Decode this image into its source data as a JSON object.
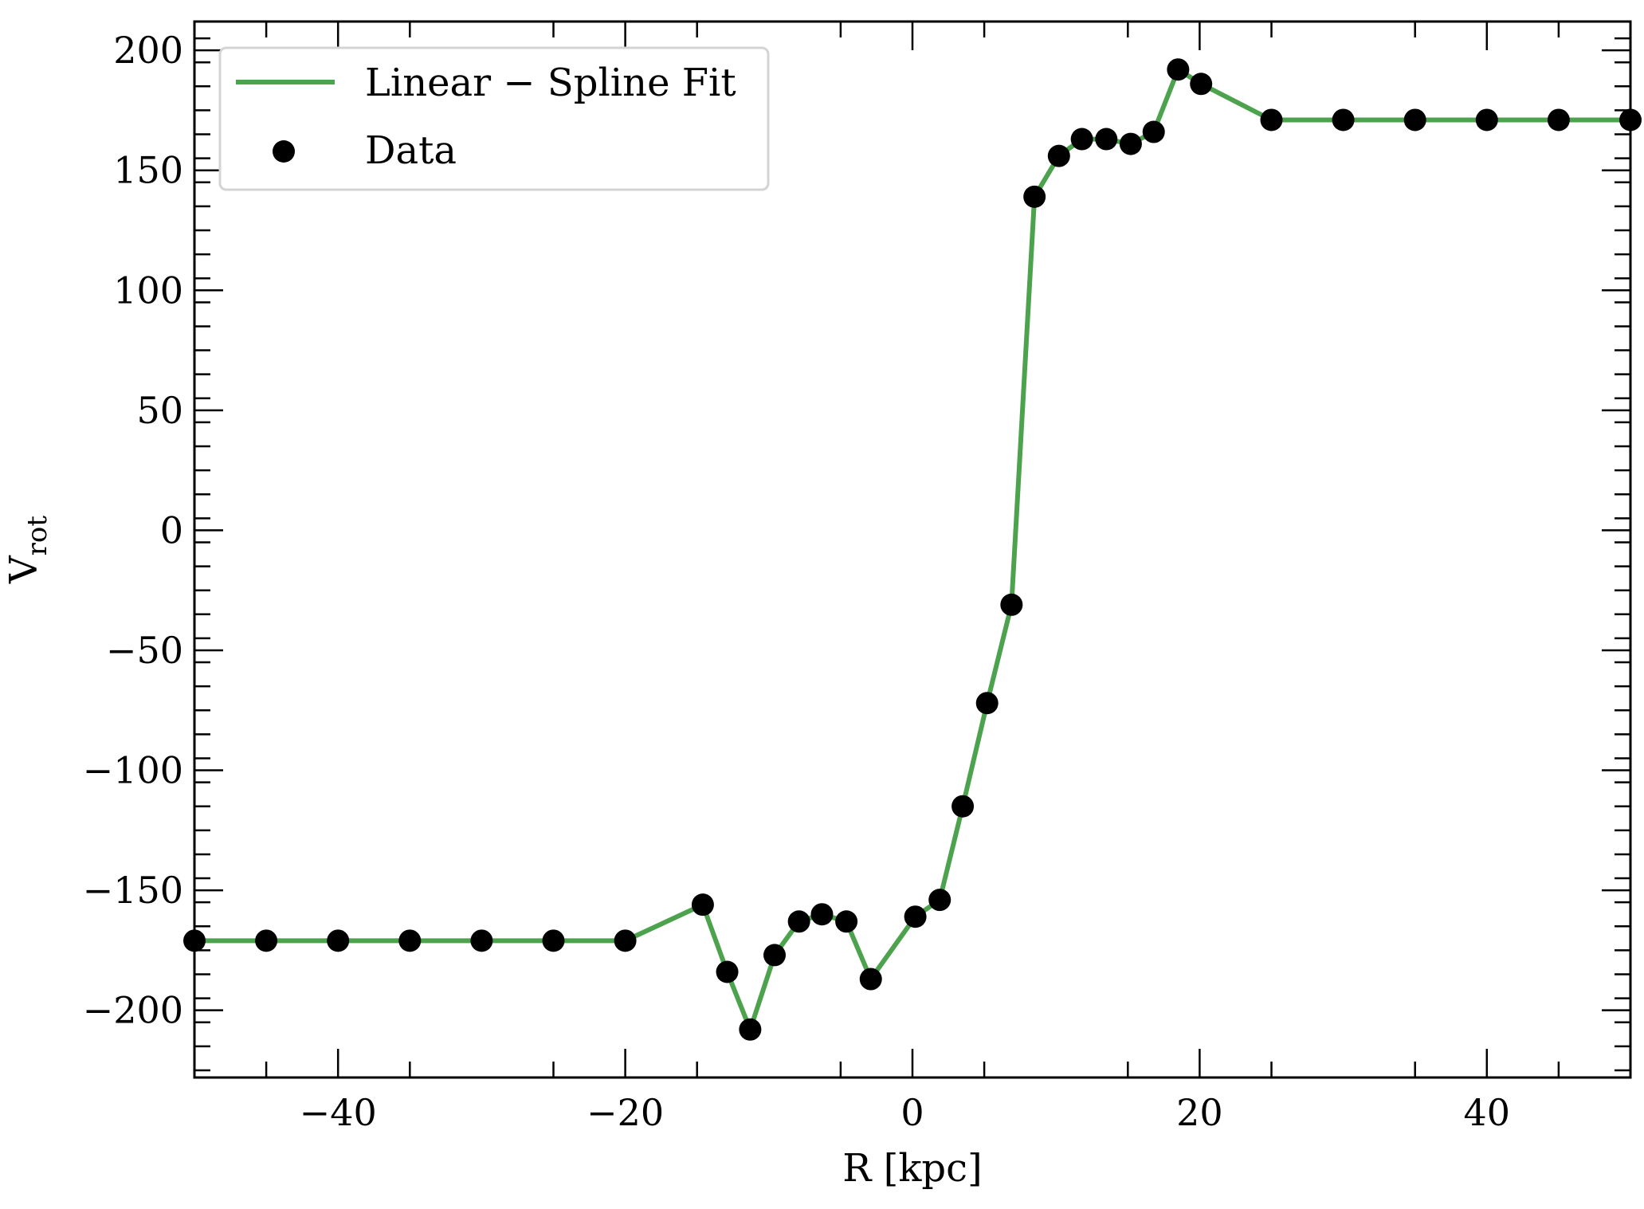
{
  "chart_data": {
    "type": "line",
    "title": "",
    "xlabel": "R [kpc]",
    "ylabel": "V",
    "ylabel_sub": "rot",
    "xlim": [
      -50,
      50
    ],
    "ylim": [
      -228,
      212
    ],
    "xticks": [
      -40,
      -20,
      0,
      20,
      40
    ],
    "xtick_labels": [
      "−40",
      "−20",
      "0",
      "20",
      "40"
    ],
    "yticks": [
      200,
      150,
      100,
      50,
      0,
      -50,
      -100,
      -150,
      -200
    ],
    "ytick_labels": [
      "200",
      "150",
      "100",
      "50",
      "0",
      "−50",
      "−100",
      "−150",
      "−200"
    ],
    "grid": false,
    "legend_position": "top-left",
    "series": [
      {
        "name": "Linear − Spline Fit",
        "kind": "line",
        "color": "#4da34d",
        "x": [
          -50,
          -45,
          -40,
          -35,
          -30,
          -25,
          -20,
          -14.6,
          -12.9,
          -11.3,
          -9.6,
          -7.9,
          -6.3,
          -4.6,
          -2.9,
          0.2,
          1.9,
          3.5,
          5.2,
          6.9,
          8.5,
          10.2,
          11.8,
          13.5,
          15.2,
          16.8,
          18.5,
          20.1,
          25,
          30,
          35,
          40,
          45,
          50
        ],
        "y": [
          -171,
          -171,
          -171,
          -171,
          -171,
          -171,
          -171,
          -156,
          -184,
          -208,
          -177,
          -163,
          -160,
          -163,
          -187,
          -161,
          -154,
          -115,
          -72,
          -31,
          139,
          156,
          163,
          163,
          161,
          166,
          192,
          186,
          171,
          171,
          171,
          171,
          171,
          171
        ]
      },
      {
        "name": "Data",
        "kind": "scatter",
        "color": "#000000",
        "x": [
          -50,
          -45,
          -40,
          -35,
          -30,
          -25,
          -20,
          -14.6,
          -12.9,
          -11.3,
          -9.6,
          -7.9,
          -6.3,
          -4.6,
          -2.9,
          0.2,
          1.9,
          3.5,
          5.2,
          6.9,
          8.5,
          10.2,
          11.8,
          13.5,
          15.2,
          16.8,
          18.5,
          20.1,
          25,
          30,
          35,
          40,
          45,
          50
        ],
        "y": [
          -171,
          -171,
          -171,
          -171,
          -171,
          -171,
          -171,
          -156,
          -184,
          -208,
          -177,
          -163,
          -160,
          -163,
          -187,
          -161,
          -154,
          -115,
          -72,
          -31,
          139,
          156,
          163,
          163,
          161,
          166,
          192,
          186,
          171,
          171,
          171,
          171,
          171,
          171
        ]
      }
    ]
  }
}
